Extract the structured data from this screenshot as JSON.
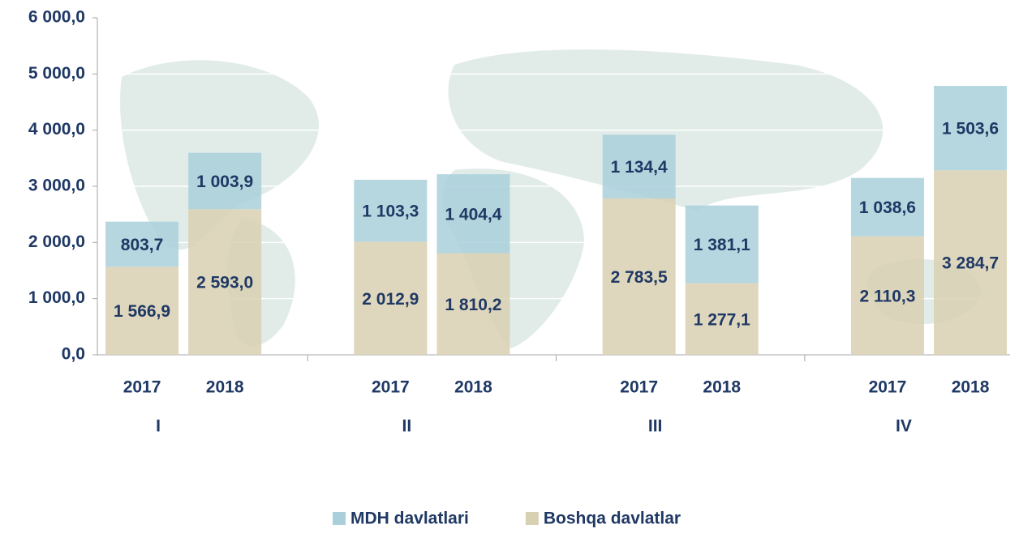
{
  "chart_data": {
    "type": "stacked-bar",
    "categories": [
      "2017",
      "2018",
      "2017",
      "2018",
      "2017",
      "2018",
      "2017",
      "2018"
    ],
    "groups": [
      "I",
      "II",
      "III",
      "IV"
    ],
    "series": [
      {
        "name": "MDH davlatlari",
        "color": "#a9d0da",
        "values": [
          803.7,
          1003.9,
          1103.3,
          1404.4,
          1134.4,
          1381.1,
          1038.6,
          1503.6
        ],
        "value_labels": [
          "803,7",
          "1 003,9",
          "1 103,3",
          "1 404,4",
          "1 134,4",
          "1 381,1",
          "1 038,6",
          "1 503,6"
        ]
      },
      {
        "name": "Boshqa davlatlar",
        "color": "#d8d0b2",
        "values": [
          1566.9,
          2593.0,
          2012.9,
          1810.2,
          2783.5,
          1277.1,
          2110.3,
          3284.7
        ],
        "value_labels": [
          "1 566,9",
          "2 593,0",
          "2 012,9",
          "1 810,2",
          "2 783,5",
          "1 277,1",
          "2 110,3",
          "3 284,7"
        ]
      }
    ],
    "ylim": [
      0,
      6000
    ],
    "yticks": [
      {
        "value": 0,
        "label": "0,0"
      },
      {
        "value": 1000,
        "label": "1 000,0"
      },
      {
        "value": 2000,
        "label": "2 000,0"
      },
      {
        "value": 3000,
        "label": "3 000,0"
      },
      {
        "value": 4000,
        "label": "4 000,0"
      },
      {
        "value": 5000,
        "label": "5 000,0"
      },
      {
        "value": 6000,
        "label": "6 000,0"
      }
    ],
    "grid": true,
    "legend": "bottom"
  }
}
